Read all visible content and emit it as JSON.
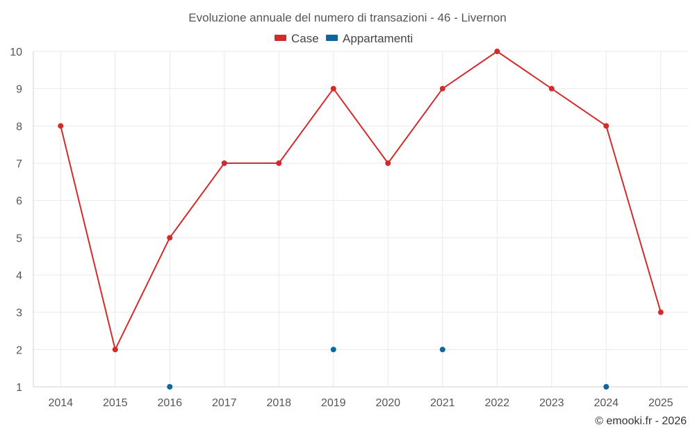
{
  "chart_data": {
    "type": "line",
    "title": "Evoluzione annuale del numero di transazioni - 46 - Livernon",
    "categories": [
      "2014",
      "2015",
      "2016",
      "2017",
      "2018",
      "2019",
      "2020",
      "2021",
      "2022",
      "2023",
      "2024",
      "2025"
    ],
    "series": [
      {
        "name": "Case",
        "color": "#d42a2a",
        "line": true,
        "values": [
          8,
          2,
          5,
          7,
          7,
          9,
          7,
          9,
          10,
          9,
          8,
          3
        ]
      },
      {
        "name": "Appartamenti",
        "color": "#0b67a0",
        "line": false,
        "values": [
          null,
          null,
          1,
          null,
          null,
          2,
          null,
          2,
          null,
          null,
          1,
          null
        ]
      }
    ],
    "yticks": [
      1,
      2,
      3,
      4,
      5,
      6,
      7,
      8,
      9,
      10
    ],
    "ylim": [
      1,
      10
    ],
    "xlabel": "",
    "ylabel": "",
    "grid": true,
    "legend_position": "top-center"
  },
  "credit": "© emooki.fr - 2026"
}
